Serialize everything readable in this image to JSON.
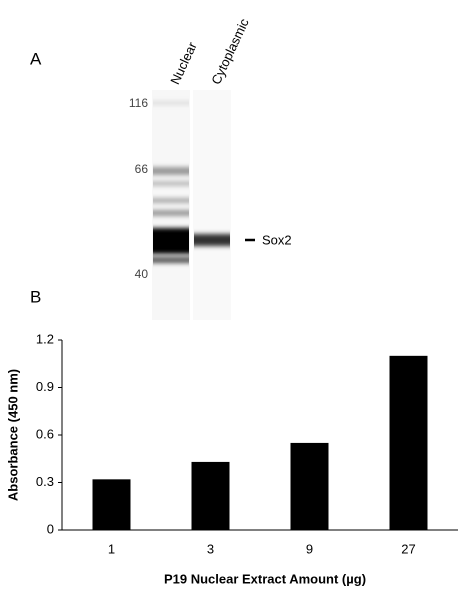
{
  "panel_a": {
    "label": "A",
    "lanes": [
      "Nuclear",
      "Cytoplasmic"
    ],
    "markers": [
      "116",
      "66",
      "40"
    ],
    "band_label": "Sox2"
  },
  "chart_data": {
    "type": "bar",
    "label": "B",
    "categories": [
      "1",
      "3",
      "9",
      "27"
    ],
    "values": [
      0.32,
      0.43,
      0.55,
      1.1
    ],
    "color": "#000000",
    "ylim": [
      0,
      1.2
    ],
    "yticks": [
      0,
      0.3,
      0.6,
      0.9,
      1.2
    ],
    "x_label": "P19 Nuclear Extract Amount (µg)",
    "y_label": "Absorbance (450 nm)",
    "grid": false
  }
}
